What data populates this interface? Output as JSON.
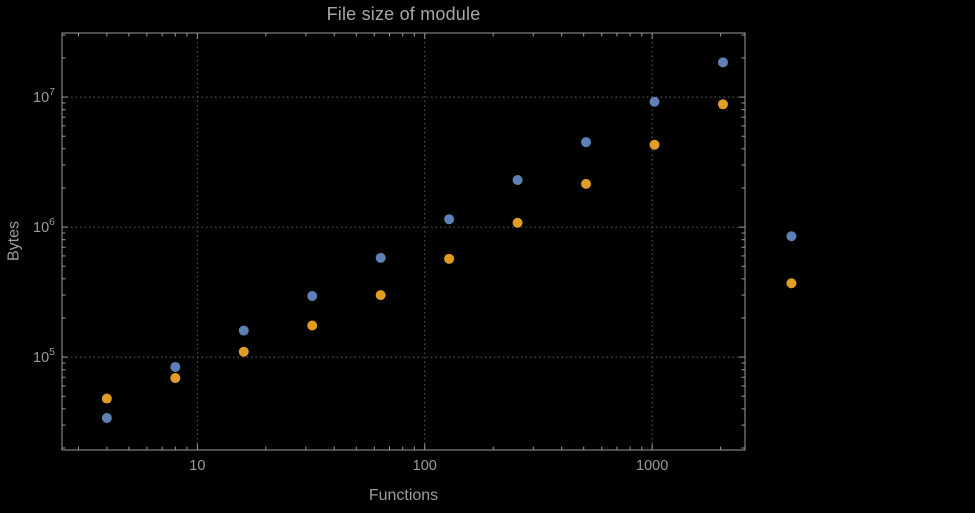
{
  "window": {
    "background": "#000000"
  },
  "chart_data": {
    "type": "scatter",
    "title": "File size of module",
    "xlabel": "Functions",
    "ylabel": "Bytes",
    "x_scale": "log",
    "y_scale": "log",
    "grid": "dotted",
    "legend": "none",
    "frame": true,
    "x": [
      4,
      8,
      16,
      32,
      64,
      128,
      256,
      512,
      1024,
      2048,
      4096
    ],
    "series": [
      {
        "name": "blue",
        "color": "#5e81b5",
        "values": [
          34000,
          84000,
          160000,
          295000,
          580000,
          1150000,
          2300000,
          4500000,
          9200000,
          18500000,
          850000
        ]
      },
      {
        "name": "orange",
        "color": "#e19c24",
        "values": [
          48000,
          69000,
          110000,
          175000,
          300000,
          570000,
          1080000,
          2150000,
          4300000,
          8800000,
          370000
        ]
      }
    ],
    "x_axis": {
      "range": [
        2.54,
        2560
      ],
      "ticks": [
        {
          "value": 10,
          "label": "10"
        },
        {
          "value": 100,
          "label": "100"
        },
        {
          "value": 1000,
          "label": "1000"
        }
      ]
    },
    "y_axis": {
      "range": [
        19300,
        31100000
      ],
      "ticks": [
        {
          "value": 100000,
          "base": "10",
          "exp": "5"
        },
        {
          "value": 1000000,
          "base": "10",
          "exp": "6"
        },
        {
          "value": 10000000,
          "base": "10",
          "exp": "7"
        }
      ]
    },
    "colors": {
      "frame": "#9a9a9a",
      "grid": "#5f5f5f",
      "text": "#9c9c9c"
    },
    "marker": {
      "shape": "circle",
      "radius": 5
    }
  }
}
